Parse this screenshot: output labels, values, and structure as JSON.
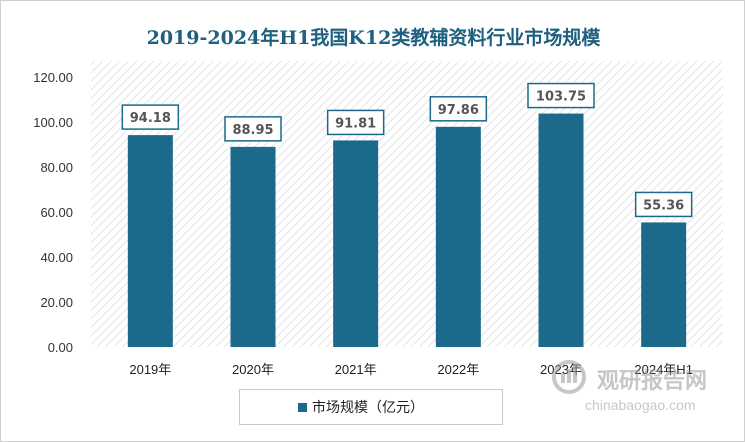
{
  "chart_data": {
    "type": "bar",
    "title": "2019-2024年H1我国K12类教辅资料行业市场规模",
    "categories": [
      "2019年",
      "2020年",
      "2021年",
      "2022年",
      "2023年",
      "2024年H1"
    ],
    "series": [
      {
        "name": "市场规模（亿元）",
        "values": [
          94.18,
          88.95,
          91.81,
          97.86,
          103.75,
          55.36
        ]
      }
    ],
    "data_labels": [
      "94.18",
      "88.95",
      "91.81",
      "97.86",
      "103.75",
      "55.36"
    ],
    "y_ticks": [
      "0.00",
      "20.00",
      "40.00",
      "60.00",
      "80.00",
      "100.00",
      "120.00"
    ],
    "ylim": [
      0,
      120
    ],
    "grid": false,
    "legend_position": "bottom",
    "bar_color": "#1b6a8c",
    "label_border_color": "#1b6a8c",
    "plot_pattern": "diagonal-hatch"
  },
  "watermark": {
    "name": "观研报告网",
    "url": "chinabaogao.com"
  }
}
